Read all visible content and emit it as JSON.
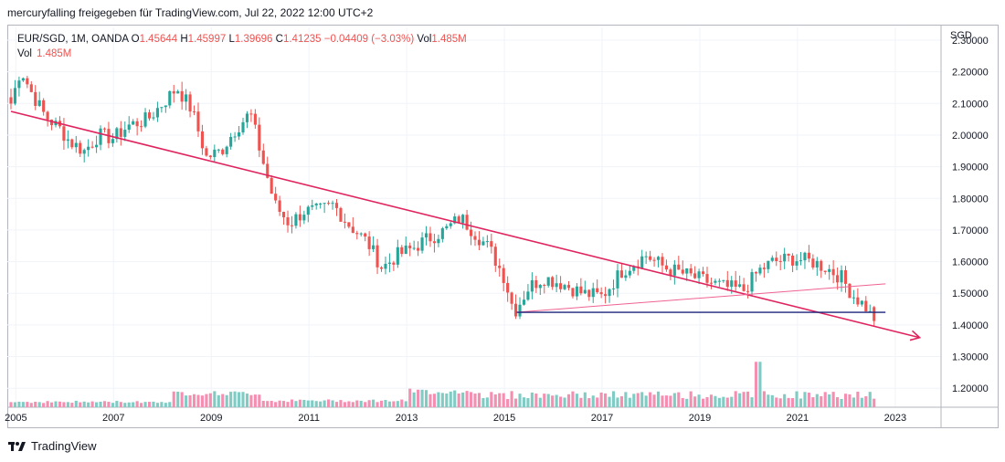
{
  "header": {
    "text": "mercuryfalling freigegeben für TradingView.com, Jul 22, 2022 12:00 UTC+2"
  },
  "legend": {
    "symbol": "EUR/SGD, 1M, OANDA",
    "open_label": "O",
    "open": "1.45644",
    "high_label": "H",
    "high": "1.45997",
    "low_label": "L",
    "low": "1.39696",
    "close_label": "C",
    "close": "1.41235",
    "change": "−0.04409 (−3.03%)",
    "vol_label": "Vol",
    "vol": "1.485M",
    "vol_row_label": "Vol",
    "vol_row_value": "1.485M"
  },
  "footer": {
    "brand": "TradingView"
  },
  "colors": {
    "up": "#26a69a",
    "down": "#ef5350",
    "up_vol": "#80cbc4",
    "down_vol": "#f48fb1",
    "trendline": "#e0245e",
    "support": "#1a237e",
    "grid": "#f0f3fa"
  },
  "chart_data": {
    "type": "candlestick",
    "symbol": "EUR/SGD",
    "interval": "1M",
    "ylabel": "SGD",
    "ylim": [
      1.14,
      2.3
    ],
    "y_ticks": [
      "1.20000",
      "1.30000",
      "1.40000",
      "1.50000",
      "1.60000",
      "1.70000",
      "1.80000",
      "1.90000",
      "2.00000",
      "2.10000",
      "2.20000",
      "2.30000"
    ],
    "x_ticks": [
      "2005",
      "2007",
      "2009",
      "2011",
      "2013",
      "2015",
      "2017",
      "2019",
      "2021",
      "2023"
    ],
    "x_range": [
      2004.9,
      2023.9
    ],
    "anchors": [
      [
        2004.9,
        2.1
      ],
      [
        2005.1,
        2.21
      ],
      [
        2005.3,
        2.14
      ],
      [
        2005.6,
        2.06
      ],
      [
        2005.9,
        2.02
      ],
      [
        2006.1,
        1.98
      ],
      [
        2006.4,
        1.95
      ],
      [
        2006.7,
        2.0
      ],
      [
        2007.0,
        1.99
      ],
      [
        2007.3,
        2.03
      ],
      [
        2007.7,
        2.05
      ],
      [
        2008.0,
        2.1
      ],
      [
        2008.3,
        2.15
      ],
      [
        2008.6,
        2.08
      ],
      [
        2008.9,
        1.93
      ],
      [
        2009.2,
        1.95
      ],
      [
        2009.5,
        2.02
      ],
      [
        2009.8,
        2.07
      ],
      [
        2010.0,
        1.95
      ],
      [
        2010.3,
        1.78
      ],
      [
        2010.6,
        1.72
      ],
      [
        2010.9,
        1.76
      ],
      [
        2011.2,
        1.76
      ],
      [
        2011.5,
        1.78
      ],
      [
        2011.8,
        1.72
      ],
      [
        2012.2,
        1.66
      ],
      [
        2012.5,
        1.58
      ],
      [
        2012.8,
        1.62
      ],
      [
        2013.1,
        1.64
      ],
      [
        2013.4,
        1.67
      ],
      [
        2013.8,
        1.7
      ],
      [
        2014.1,
        1.74
      ],
      [
        2014.4,
        1.69
      ],
      [
        2014.7,
        1.64
      ],
      [
        2015.0,
        1.55
      ],
      [
        2015.2,
        1.44
      ],
      [
        2015.5,
        1.52
      ],
      [
        2015.8,
        1.55
      ],
      [
        2016.2,
        1.53
      ],
      [
        2016.6,
        1.5
      ],
      [
        2017.0,
        1.49
      ],
      [
        2017.4,
        1.57
      ],
      [
        2017.9,
        1.62
      ],
      [
        2018.3,
        1.58
      ],
      [
        2018.7,
        1.56
      ],
      [
        2019.1,
        1.54
      ],
      [
        2019.5,
        1.52
      ],
      [
        2019.9,
        1.51
      ],
      [
        2020.2,
        1.57
      ],
      [
        2020.5,
        1.6
      ],
      [
        2020.9,
        1.61
      ],
      [
        2021.3,
        1.6
      ],
      [
        2021.6,
        1.58
      ],
      [
        2021.9,
        1.55
      ],
      [
        2022.1,
        1.5
      ],
      [
        2022.4,
        1.456
      ],
      [
        2022.55,
        1.412
      ]
    ],
    "volume_scale": [
      0,
      2.0
    ],
    "volume_spike": {
      "x": 2020.2,
      "value": 1.95
    },
    "trendlines": [
      {
        "name": "falling-resistance",
        "from": [
          2004.9,
          2.075
        ],
        "to": [
          2023.5,
          1.36
        ],
        "arrow": true
      },
      {
        "name": "rising-line",
        "from": [
          2015.25,
          1.44
        ],
        "to": [
          2022.8,
          1.53
        ]
      }
    ],
    "hlines": [
      {
        "name": "support",
        "from_x": 2015.25,
        "to_x": 2022.8,
        "y": 1.44
      }
    ],
    "last_bar": {
      "open": 1.45644,
      "high": 1.45997,
      "low": 1.39696,
      "close": 1.41235,
      "volume": "1.485M"
    }
  }
}
